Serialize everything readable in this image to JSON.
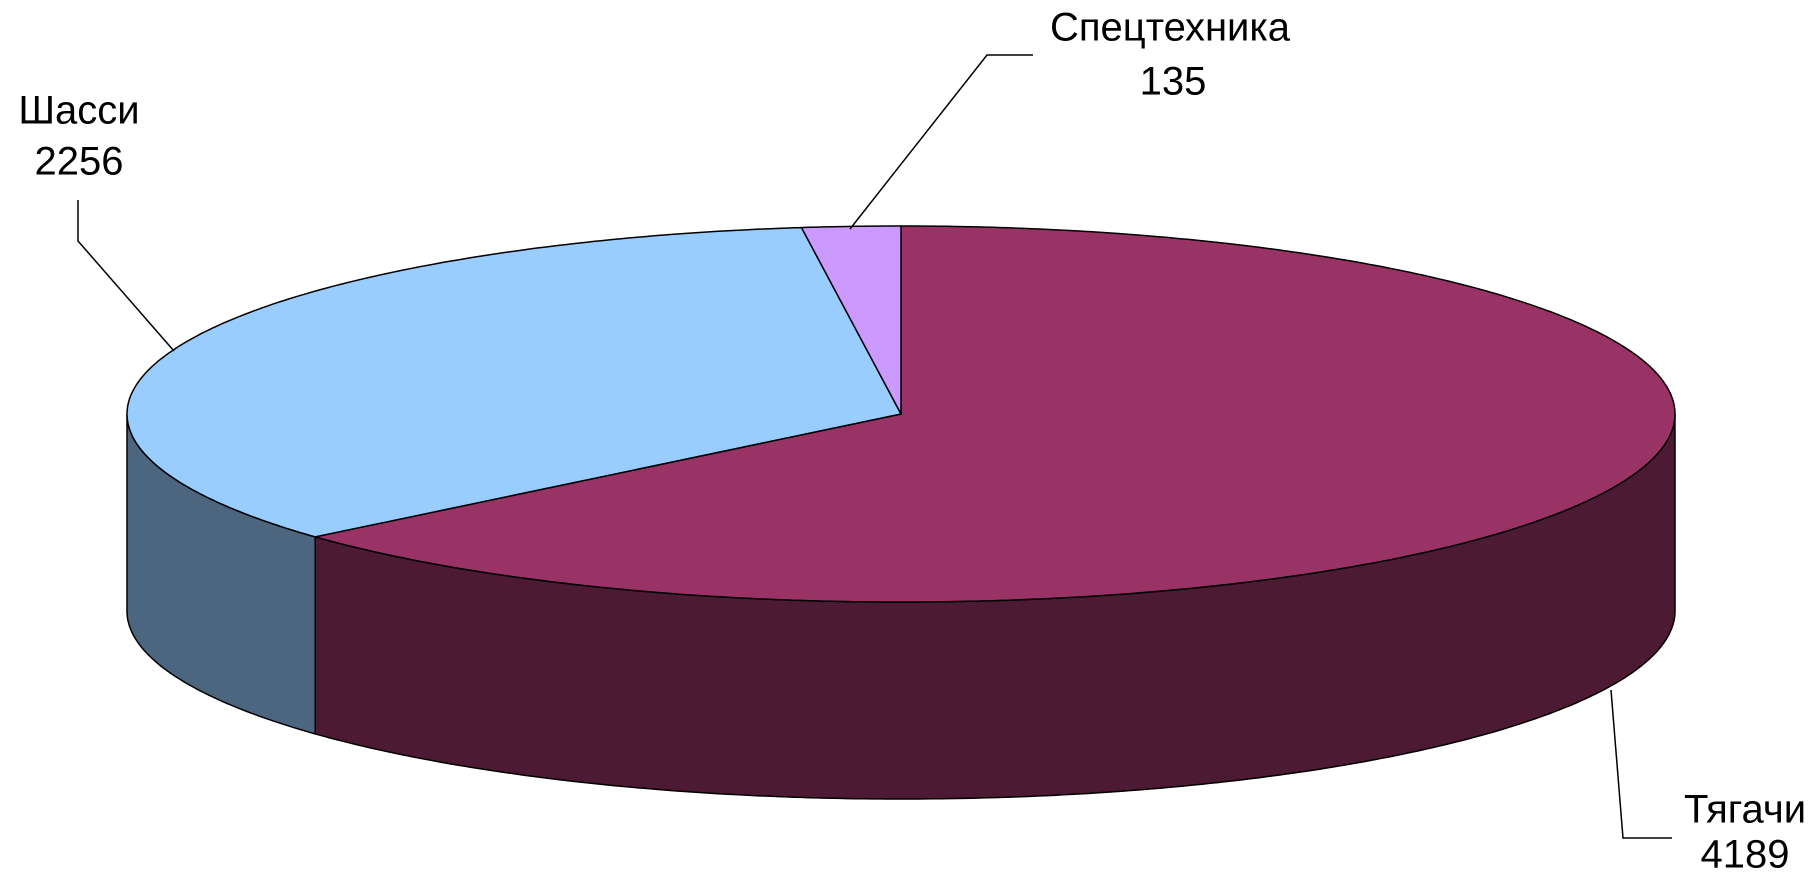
{
  "chart_data": {
    "type": "pie",
    "categories": [
      "Тягачи",
      "Шасси",
      "Спецтехника"
    ],
    "values": [
      4189,
      2256,
      135
    ],
    "colors": [
      "#993366",
      "#99ccff",
      "#cc99ff"
    ],
    "side_colors": [
      "#4d1a33",
      "#4d6680",
      "#664d80"
    ]
  }
}
